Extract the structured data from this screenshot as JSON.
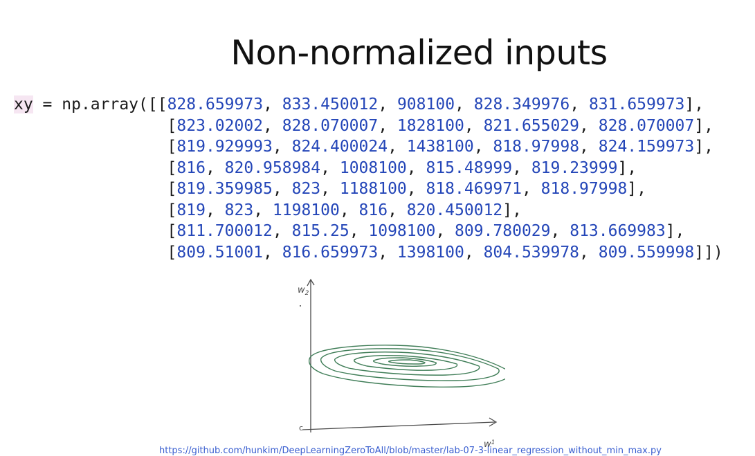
{
  "slide": {
    "title": "Non-normalized inputs"
  },
  "code": {
    "var_name": "xy",
    "assign": " = np.array([",
    "rows": [
      [
        "828.659973",
        "833.450012",
        "908100",
        "828.349976",
        "831.659973"
      ],
      [
        "823.02002",
        "828.070007",
        "1828100",
        "821.655029",
        "828.070007"
      ],
      [
        "819.929993",
        "824.400024",
        "1438100",
        "818.97998",
        "824.159973"
      ],
      [
        "816",
        "820.958984",
        "1008100",
        "815.48999",
        "819.23999"
      ],
      [
        "819.359985",
        "823",
        "1188100",
        "818.469971",
        "818.97998"
      ],
      [
        "819",
        "823",
        "1198100",
        "816",
        "820.450012"
      ],
      [
        "811.700012",
        "815.25",
        "1098100",
        "809.780029",
        "813.669983"
      ],
      [
        "809.51001",
        "816.659973",
        "1398100",
        "804.539978",
        "809.559998"
      ]
    ]
  },
  "sketch": {
    "y_axis_label": "w",
    "y_axis_subscript": "2",
    "x_axis_label": "w",
    "x_axis_subscript": "1",
    "origin_label": "c",
    "ink_color": "#3f7d57",
    "axis_color": "#4a4a4a"
  },
  "footer": {
    "link_text": "https://github.com/hunkim/DeepLearningZeroToAll/blob/master/lab-07-3-linear_regression_without_min_max.py"
  }
}
